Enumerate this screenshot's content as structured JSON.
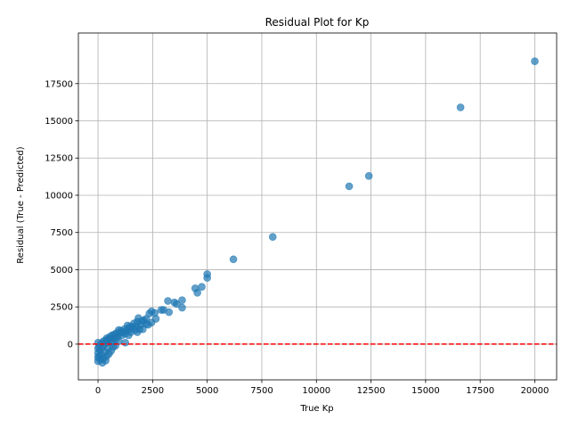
{
  "chart_data": {
    "type": "scatter",
    "title": "Residual Plot for Kp",
    "xlabel": "True Kp",
    "ylabel": "Residual (True - Predicted)",
    "xlim": [
      -900,
      21000
    ],
    "ylim": [
      -2400,
      20900
    ],
    "x_ticks": [
      0,
      2500,
      5000,
      7500,
      10000,
      12500,
      15000,
      17500,
      20000
    ],
    "x_tick_labels": [
      "0",
      "2500",
      "5000",
      "7500",
      "10000",
      "12500",
      "15000",
      "17500",
      "20000"
    ],
    "y_ticks": [
      0,
      2500,
      5000,
      7500,
      10000,
      12500,
      15000,
      17500
    ],
    "y_tick_labels": [
      "0",
      "2500",
      "5000",
      "7500",
      "10000",
      "12500",
      "15000",
      "17500"
    ],
    "grid": true,
    "reference_line": {
      "y": 0,
      "style": "dashed",
      "color": "#ff0000"
    },
    "marker_color": "#1f77b4",
    "marker_alpha": 0.7,
    "points": [
      [
        20000,
        19000
      ],
      [
        16600,
        15900
      ],
      [
        12400,
        11300
      ],
      [
        11500,
        10600
      ],
      [
        8000,
        7200
      ],
      [
        6200,
        5700
      ],
      [
        5000,
        4700
      ],
      [
        5000,
        4450
      ],
      [
        4750,
        3850
      ],
      [
        4450,
        3750
      ],
      [
        4550,
        3450
      ],
      [
        3850,
        2950
      ],
      [
        3850,
        2450
      ],
      [
        3200,
        2900
      ],
      [
        3500,
        2800
      ],
      [
        3600,
        2700
      ],
      [
        3250,
        2150
      ],
      [
        3000,
        2300
      ],
      [
        2900,
        2300
      ],
      [
        2600,
        2100
      ],
      [
        2450,
        2200
      ],
      [
        2350,
        2050
      ],
      [
        2650,
        1700
      ],
      [
        2450,
        1450
      ],
      [
        2300,
        1300
      ],
      [
        2200,
        1700
      ],
      [
        2100,
        1600
      ],
      [
        2000,
        1550
      ],
      [
        1950,
        1300
      ],
      [
        1900,
        1000
      ],
      [
        1850,
        1750
      ],
      [
        1800,
        1500
      ],
      [
        1750,
        1200
      ],
      [
        1700,
        950
      ],
      [
        1650,
        1400
      ],
      [
        1600,
        1100
      ],
      [
        1500,
        1200
      ],
      [
        1450,
        1000
      ],
      [
        1400,
        1100
      ],
      [
        1350,
        1250
      ],
      [
        1300,
        900
      ],
      [
        1250,
        700
      ],
      [
        1200,
        1000
      ],
      [
        1150,
        800
      ],
      [
        1100,
        600
      ],
      [
        1050,
        900
      ],
      [
        1000,
        750
      ],
      [
        950,
        950
      ],
      [
        900,
        500
      ],
      [
        850,
        750
      ],
      [
        800,
        350
      ],
      [
        750,
        650
      ],
      [
        700,
        450
      ],
      [
        650,
        600
      ],
      [
        600,
        250
      ],
      [
        550,
        500
      ],
      [
        500,
        350
      ],
      [
        450,
        100
      ],
      [
        400,
        400
      ],
      [
        350,
        250
      ],
      [
        300,
        0
      ],
      [
        250,
        200
      ],
      [
        200,
        -200
      ],
      [
        150,
        50
      ],
      [
        100,
        -400
      ],
      [
        50,
        -150
      ],
      [
        0,
        100
      ],
      [
        0,
        -300
      ],
      [
        0,
        -600
      ],
      [
        0,
        -900
      ],
      [
        0,
        -1150
      ],
      [
        50,
        -800
      ],
      [
        100,
        -1050
      ],
      [
        150,
        -700
      ],
      [
        200,
        -1250
      ],
      [
        250,
        -950
      ],
      [
        300,
        -500
      ],
      [
        350,
        -1100
      ],
      [
        400,
        -800
      ],
      [
        450,
        -300
      ],
      [
        500,
        -650
      ],
      [
        600,
        -450
      ],
      [
        700,
        -200
      ],
      [
        800,
        -100
      ],
      [
        1250,
        100
      ],
      [
        1400,
        600
      ],
      [
        1500,
        800
      ],
      [
        1800,
        800
      ],
      [
        2050,
        1000
      ],
      [
        2200,
        1350
      ],
      [
        950,
        200
      ],
      [
        650,
        100
      ]
    ]
  }
}
